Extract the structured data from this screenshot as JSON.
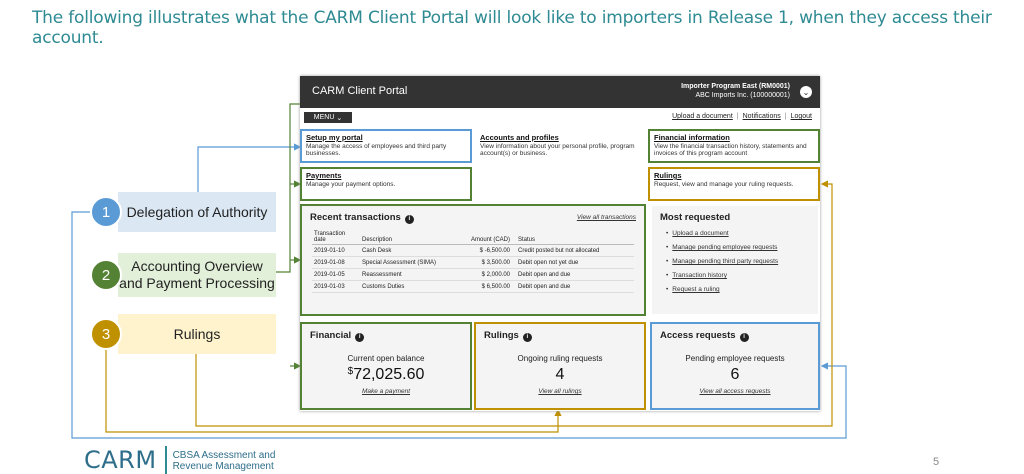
{
  "slide_title": "The following illustrates what the CARM Client Portal will look like to importers in Release 1, when they access their account.",
  "legend": [
    {
      "number": "1",
      "label": "Delegation of Authority"
    },
    {
      "number": "2",
      "label_line1": "Accounting Overview",
      "label_line2": "and Payment Processing"
    },
    {
      "number": "3",
      "label": "Rulings"
    }
  ],
  "portal": {
    "brand": "CARM Client Portal",
    "account_name": "Importer Program East (RM0001)",
    "account_sub": "ABC Imports Inc. (100000001)",
    "menu_label": "MENU",
    "header_links": [
      "Upload a document",
      "Notifications",
      "Logout"
    ],
    "cards": {
      "setup": {
        "title": "Setup my portal",
        "desc": "Manage the access of employees and third party businesses."
      },
      "accounts": {
        "title": "Accounts and profiles",
        "desc": "View information about your personal profile, program account(s) or business."
      },
      "financial_info": {
        "title": "Financial information",
        "desc": "View the financial transaction history, statements and invoices of this program account"
      },
      "payments": {
        "title": "Payments",
        "desc": "Manage your payment options."
      },
      "rulings": {
        "title": "Rulings",
        "desc": "Request, view and manage your ruling requests."
      }
    },
    "recent_transactions": {
      "title": "Recent transactions",
      "view_all": "View all transactions",
      "columns": [
        "Transaction date",
        "Description",
        "Amount (CAD)",
        "Status"
      ],
      "rows": [
        [
          "2019-01-10",
          "Cash Desk",
          "$ -6,500.00",
          "Credit posted but not allocated"
        ],
        [
          "2019-01-08",
          "Special Assessment (SIMA)",
          "$ 3,500.00",
          "Debit open not yet due"
        ],
        [
          "2019-01-05",
          "Reassessment",
          "$ 2,000.00",
          "Debit open and due"
        ],
        [
          "2019-01-03",
          "Customs Duties",
          "$ 6,500.00",
          "Debit open and due"
        ]
      ]
    },
    "most_requested": {
      "title": "Most requested",
      "items": [
        "Upload a document",
        "Manage pending employee requests",
        "Manage pending third party requests",
        "Transaction history",
        "Request a ruling"
      ]
    },
    "financial": {
      "title": "Financial",
      "label": "Current open balance",
      "currency": "$",
      "value": "72,025.60",
      "link": "Make a payment"
    },
    "rulings_panel": {
      "title": "Rulings",
      "label": "Ongoing ruling requests",
      "value": "4",
      "link": "View all rulings"
    },
    "access": {
      "title": "Access requests",
      "label": "Pending employee requests",
      "value": "6",
      "link": "View all access requests"
    }
  },
  "logo": {
    "word": "CARM",
    "line1": "CBSA Assessment and",
    "line2": "Revenue Management"
  },
  "page_number": "5",
  "colors": {
    "blue": "#5b9bd5",
    "green": "#548235",
    "gold": "#bf9000",
    "title_teal": "#2e8a93"
  }
}
